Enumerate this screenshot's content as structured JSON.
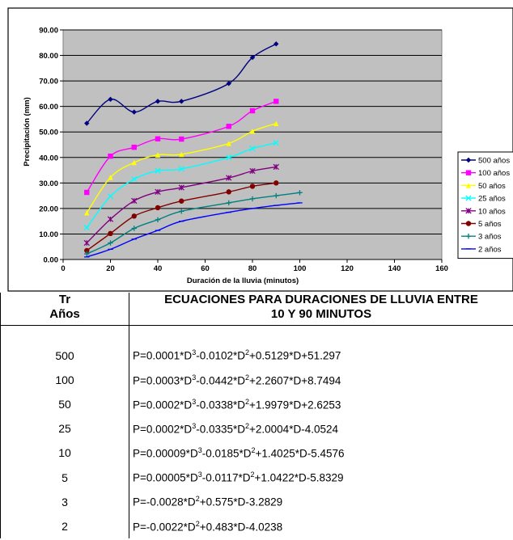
{
  "chart_data": {
    "type": "line",
    "xlabel": "Duración de la lluvia (minutos)",
    "ylabel": "Precipitación (mm)",
    "xlim": [
      0,
      160
    ],
    "ylim": [
      0,
      90
    ],
    "xticks": [
      "0",
      "20",
      "40",
      "60",
      "80",
      "100",
      "120",
      "140",
      "160"
    ],
    "yticks": [
      "0.00",
      "10.00",
      "20.00",
      "30.00",
      "40.00",
      "50.00",
      "60.00",
      "70.00",
      "80.00",
      "90.00"
    ],
    "grid": "horizontal",
    "legend": "right",
    "series": [
      {
        "name": "500 años",
        "color": "#000080",
        "marker": "diamond",
        "x": [
          10,
          20,
          30,
          40,
          50,
          70,
          80,
          90
        ],
        "y": [
          53.4,
          62.8,
          57.8,
          62.0,
          62.0,
          69.0,
          79.2,
          84.5
        ]
      },
      {
        "name": "100 años",
        "color": "#ff00ff",
        "marker": "square",
        "x": [
          10,
          20,
          30,
          40,
          50,
          70,
          80,
          90
        ],
        "y": [
          26.3,
          40.5,
          44.0,
          47.3,
          47.2,
          52.2,
          58.3,
          62.0
        ]
      },
      {
        "name": "50 años",
        "color": "#ffff00",
        "marker": "triangle",
        "x": [
          10,
          20,
          30,
          40,
          50,
          70,
          80,
          90
        ],
        "y": [
          18.3,
          32.2,
          38.0,
          41.0,
          41.2,
          45.5,
          50.3,
          53.3
        ]
      },
      {
        "name": "25 años",
        "color": "#00ffff",
        "marker": "x",
        "x": [
          10,
          20,
          30,
          40,
          50,
          70,
          80,
          90
        ],
        "y": [
          12.5,
          24.8,
          31.5,
          34.8,
          35.5,
          40.0,
          43.5,
          45.7
        ]
      },
      {
        "name": "10 años",
        "color": "#800080",
        "marker": "star",
        "x": [
          10,
          20,
          30,
          40,
          50,
          70,
          80,
          90
        ],
        "y": [
          6.5,
          15.8,
          23.0,
          26.5,
          28.2,
          32.0,
          34.7,
          36.3
        ]
      },
      {
        "name": "5 años",
        "color": "#800000",
        "marker": "circle",
        "x": [
          10,
          20,
          30,
          40,
          50,
          70,
          80,
          90
        ],
        "y": [
          3.5,
          10.2,
          17.0,
          20.3,
          22.9,
          26.5,
          28.7,
          30.0
        ]
      },
      {
        "name": "3 años",
        "color": "#008080",
        "marker": "plus",
        "x": [
          10,
          20,
          30,
          40,
          50,
          70,
          80,
          90,
          100
        ],
        "y": [
          2.2,
          6.5,
          12.2,
          15.6,
          18.9,
          22.2,
          23.8,
          25.0,
          26.2
        ]
      },
      {
        "name": "2 años",
        "color": "#0000ff",
        "marker": "dash",
        "x": [
          10,
          20,
          30,
          40,
          50,
          70,
          80,
          90,
          100
        ],
        "y": [
          1.0,
          4.0,
          8.0,
          11.4,
          15.0,
          18.5,
          20.0,
          21.2,
          22.2
        ]
      }
    ]
  },
  "table": {
    "header_tr_line1": "Tr",
    "header_tr_line2": "Años",
    "header_eq_line1": "ECUACIONES PARA DURACIONES DE LLUVIA ENTRE",
    "header_eq_line2": "10 Y 90 MINUTOS",
    "rows": [
      {
        "tr": "500",
        "eq_a": "P=0.0001*D",
        "eq_b": "-0.0102*D",
        "eq_c": "+0.5129*D+51.297",
        "cubic": true
      },
      {
        "tr": "100",
        "eq_a": "P=0.0003*D",
        "eq_b": "-0.0442*D",
        "eq_c": "+2.2607*D+8.7494",
        "cubic": true
      },
      {
        "tr": "50",
        "eq_a": "P=0.0002*D",
        "eq_b": "-0.0338*D",
        "eq_c": "+1.9979*D+2.6253",
        "cubic": true
      },
      {
        "tr": "25",
        "eq_a": "P=0.0002*D",
        "eq_b": "-0.0335*D",
        "eq_c": "+2.0004*D-4.0524",
        "cubic": true
      },
      {
        "tr": "10",
        "eq_a": "P=0.00009*D",
        "eq_b": "-0.0185*D",
        "eq_c": "+1.4025*D-5.4576",
        "cubic": true
      },
      {
        "tr": "5",
        "eq_a": "P=0.00005*D",
        "eq_b": "-0.0117*D",
        "eq_c": "+1.0422*D-5.8329",
        "cubic": true
      },
      {
        "tr": "3",
        "eq_a": "",
        "eq_b": "P=-0.0028*D",
        "eq_c": "+0.575*D-3.2829",
        "cubic": false
      },
      {
        "tr": "2",
        "eq_a": "",
        "eq_b": "P=-0.0022*D",
        "eq_c": "+0.483*D-4.0238",
        "cubic": false
      }
    ],
    "exp3": "3",
    "exp2": "2"
  }
}
